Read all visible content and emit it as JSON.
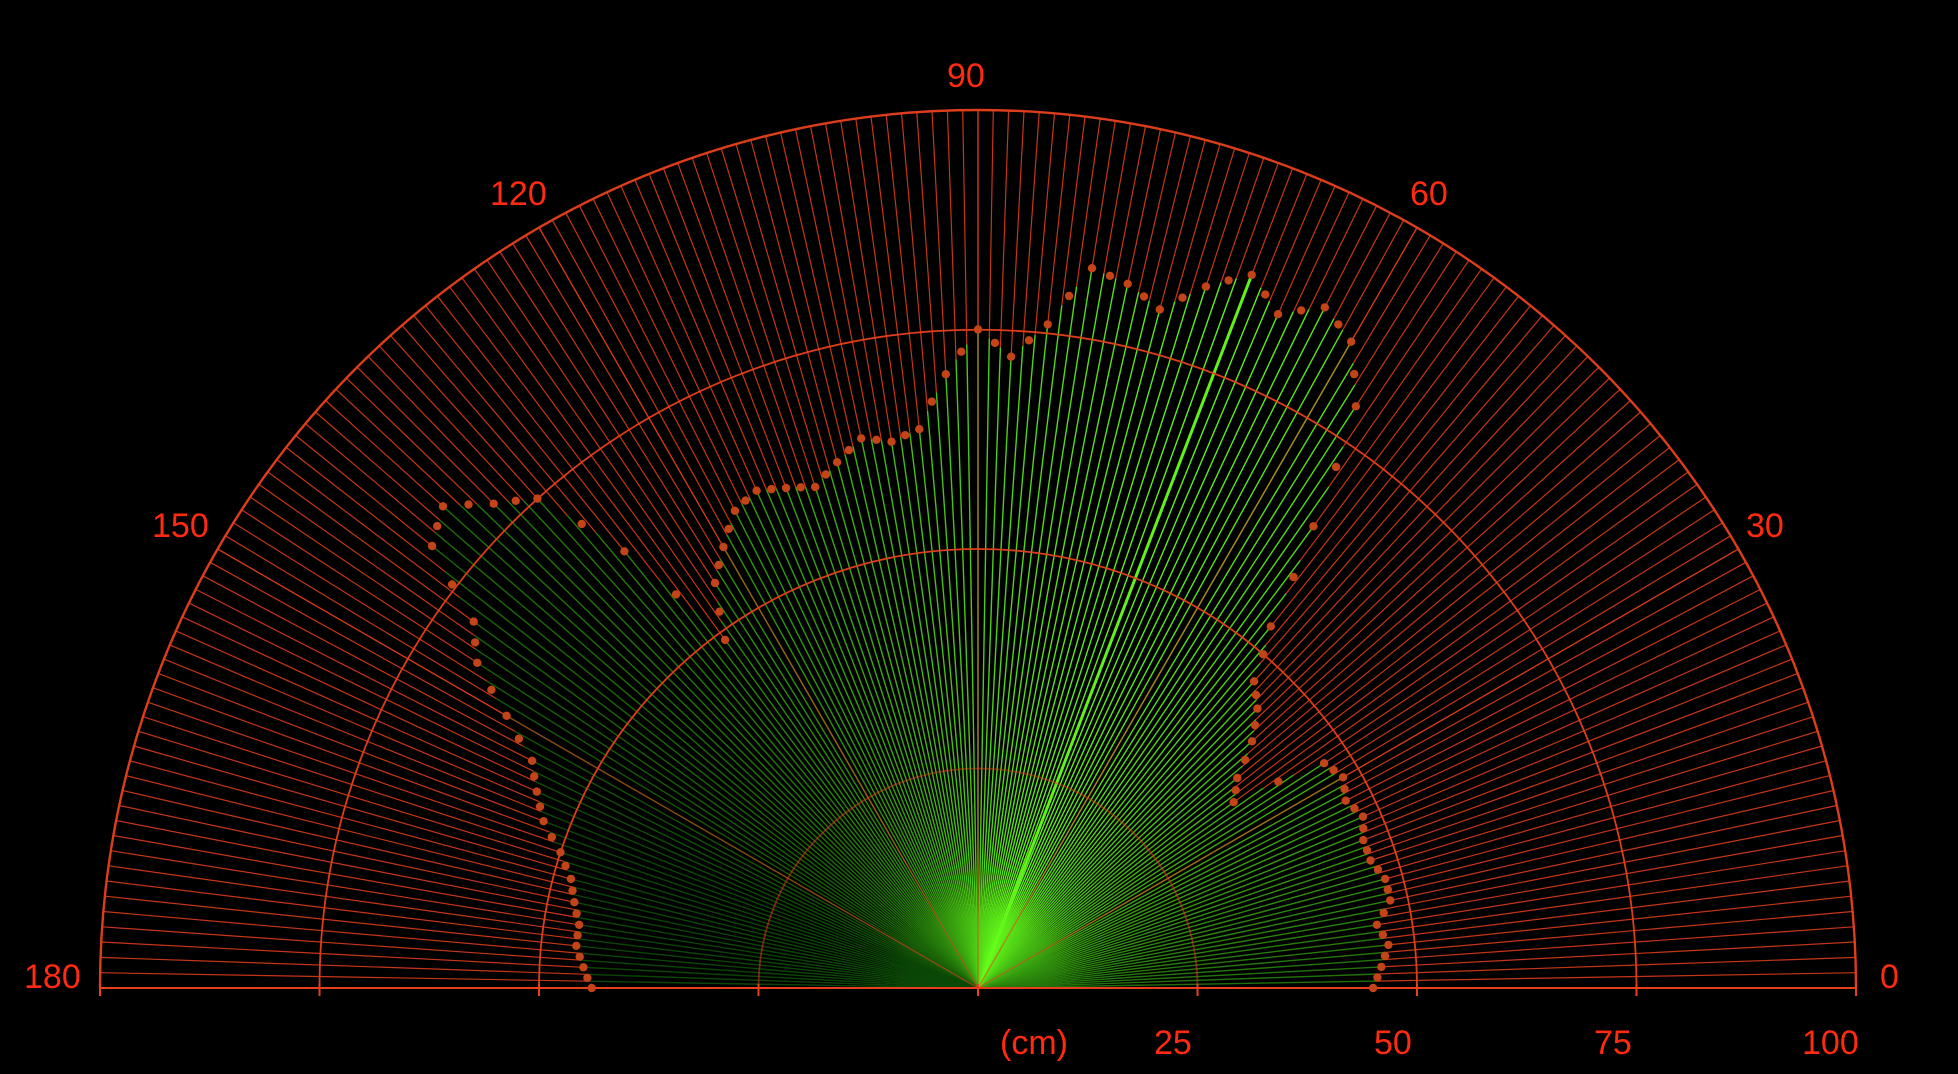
{
  "colors": {
    "background": "#000000",
    "grid": "#e8401c",
    "label": "#ff2a10",
    "sweep_bright": "#66ff1a",
    "sweep_dark": "#0c4a06",
    "echo_point": "#c24418"
  },
  "angle_labels": [
    "0",
    "30",
    "60",
    "90",
    "120",
    "150",
    "180"
  ],
  "distance_unit_label": "(cm)",
  "distance_labels": [
    "25",
    "50",
    "75",
    "100"
  ],
  "chart_data": {
    "type": "scatter",
    "coordinate_system": "polar",
    "angle_range": [
      0,
      180
    ],
    "distance_range": [
      0,
      100
    ],
    "current_angle": 69,
    "points_angle": [
      0,
      3,
      6,
      9,
      12,
      15,
      18,
      21,
      24,
      27,
      30,
      33,
      36,
      39,
      42,
      45,
      48,
      51,
      54,
      57,
      60,
      63,
      66,
      69,
      72,
      75,
      78,
      81,
      84,
      87,
      90,
      93,
      96,
      99,
      102,
      105,
      108,
      111,
      114,
      117,
      120,
      123,
      126,
      129,
      132,
      135,
      138,
      141,
      144,
      147,
      150,
      153,
      156,
      159,
      162,
      165,
      168,
      171,
      174,
      177,
      180
    ],
    "points_distance": [
      45,
      46,
      47,
      46,
      48,
      48,
      47,
      47,
      48,
      47,
      48,
      47,
      36,
      38,
      42,
      45,
      47,
      53,
      65,
      79,
      85,
      87,
      84,
      87,
      84,
      80,
      82,
      83,
      76,
      72,
      75,
      70,
      64,
      63,
      64,
      62,
      60,
      61,
      62,
      61,
      58,
      55,
      49,
      64,
      75,
      78,
      82,
      80,
      71,
      68,
      62,
      57,
      55,
      53,
      50,
      48,
      47,
      46,
      46,
      45,
      44
    ]
  }
}
